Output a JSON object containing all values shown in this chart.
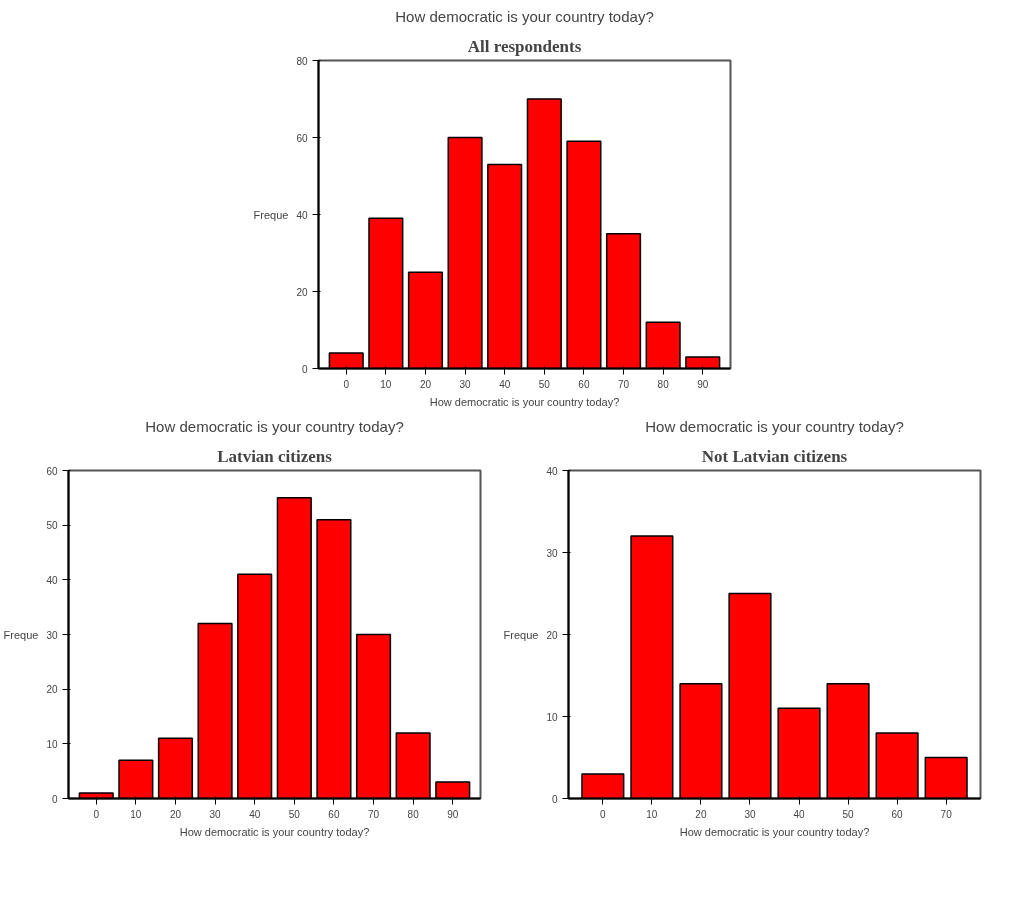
{
  "chart_data": [
    {
      "type": "bar",
      "title": "All respondents",
      "subtitle": "How democratic is your country today?",
      "xlabel": "How democratic is your country today?",
      "ylabel": "Freque",
      "categories": [
        "0",
        "10",
        "20",
        "30",
        "40",
        "50",
        "60",
        "70",
        "80",
        "90"
      ],
      "values": [
        4,
        39,
        25,
        60,
        53,
        70,
        59,
        35,
        12,
        3
      ],
      "color": "#ff0000",
      "ylim": [
        0,
        80
      ],
      "yticks": [
        0,
        20,
        40,
        60,
        80
      ],
      "grid": false,
      "legend": false
    },
    {
      "type": "bar",
      "title": "Latvian citizens",
      "subtitle": "How democratic is your country today?",
      "xlabel": "How democratic is your country today?",
      "ylabel": "Freque",
      "categories": [
        "0",
        "10",
        "20",
        "30",
        "40",
        "50",
        "60",
        "70",
        "80",
        "90"
      ],
      "values": [
        1,
        7,
        11,
        32,
        41,
        55,
        51,
        30,
        12,
        3
      ],
      "color": "#ff0000",
      "ylim": [
        0,
        60
      ],
      "yticks": [
        0,
        10,
        20,
        30,
        40,
        50,
        60
      ],
      "grid": false,
      "legend": false
    },
    {
      "type": "bar",
      "title": "Not Latvian citizens",
      "subtitle": "How democratic is your country today?",
      "xlabel": "How democratic is your country today?",
      "ylabel": "Freque",
      "categories": [
        "0",
        "10",
        "20",
        "30",
        "40",
        "50",
        "60",
        "70"
      ],
      "values": [
        3,
        32,
        14,
        25,
        11,
        14,
        8,
        5
      ],
      "color": "#ff0000",
      "ylim": [
        0,
        40
      ],
      "yticks": [
        0,
        10,
        20,
        30,
        40
      ],
      "grid": false,
      "legend": false
    }
  ]
}
